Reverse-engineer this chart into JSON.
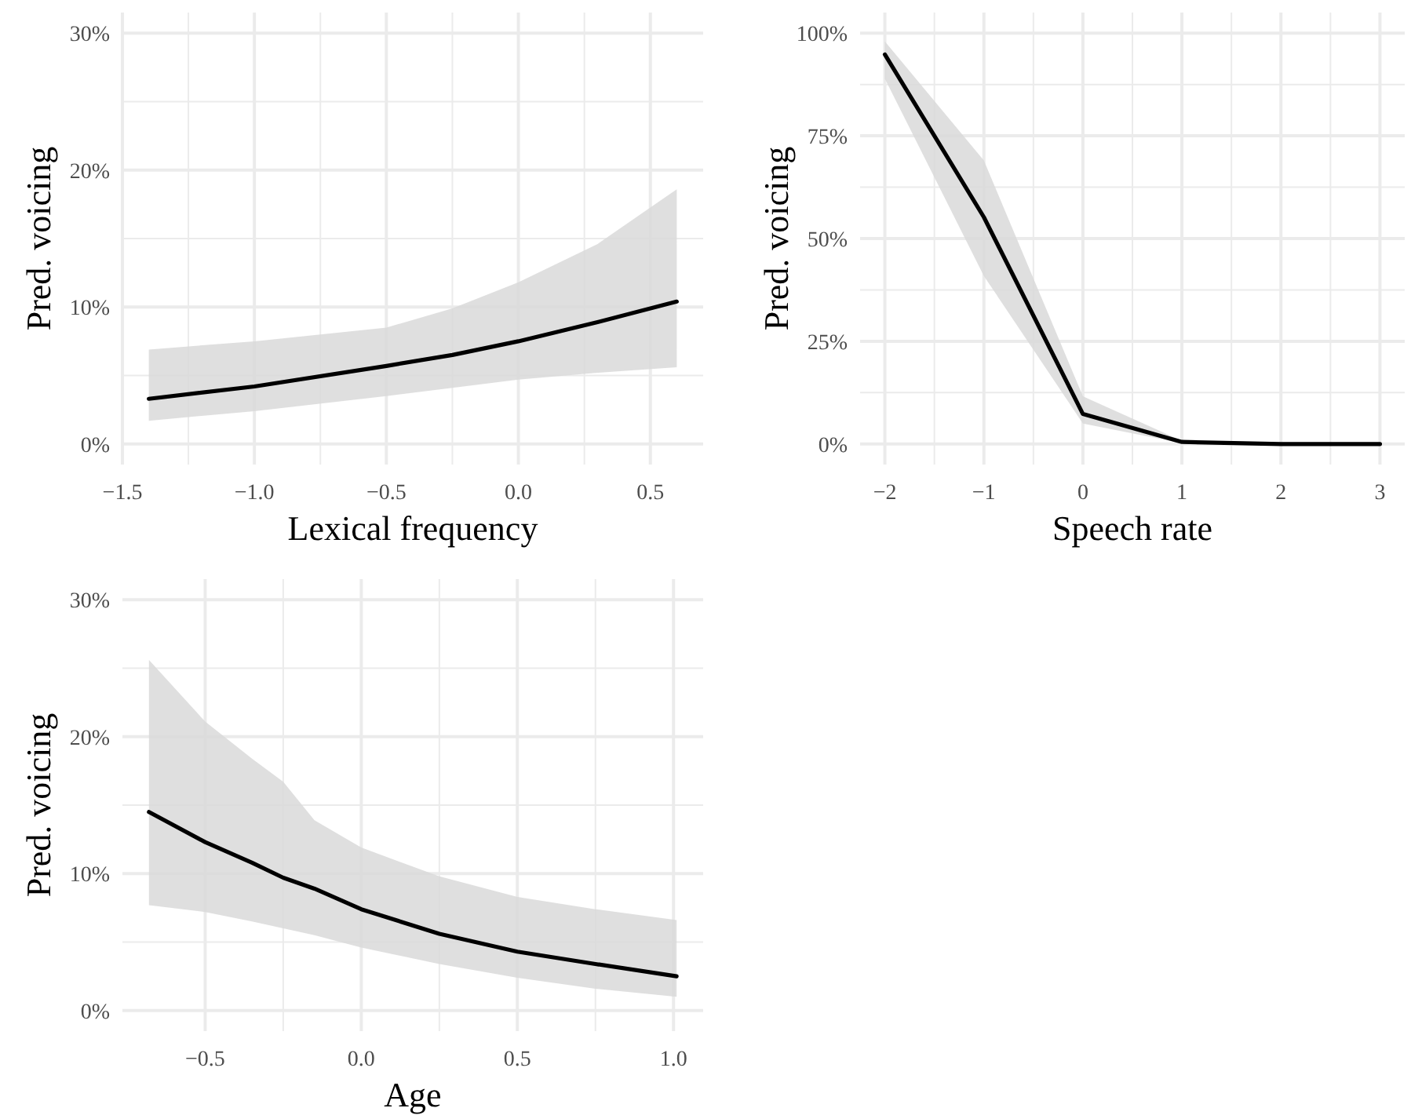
{
  "chart_data": [
    {
      "type": "line",
      "xlabel": "Lexical frequency",
      "ylabel": "Pred. voicing",
      "grid": true,
      "xlim": [
        -1.5,
        0.7
      ],
      "ylim": [
        -1.5,
        31.5
      ],
      "xticks": [
        -1.5,
        {
          "value": -1.25,
          "label": null
        },
        {
          "value": -1,
          "label": "−1.0"
        },
        {
          "value": -0.75,
          "label": null
        },
        -0.5,
        {
          "value": -0.25,
          "label": null
        },
        {
          "value": 0,
          "label": "0.0"
        },
        {
          "value": 0.25,
          "label": null
        },
        0.5
      ],
      "yticks": [
        {
          "value": 0,
          "label": "0%"
        },
        {
          "value": 5,
          "label": null
        },
        {
          "value": 10,
          "label": "10%"
        },
        {
          "value": 15,
          "label": null
        },
        {
          "value": 20,
          "label": "20%"
        },
        {
          "value": 25,
          "label": null
        },
        {
          "value": 30,
          "label": "30%"
        }
      ],
      "series": [
        {
          "color": "#000000",
          "x": [
            -1.4,
            -1.0,
            -0.5,
            -0.25,
            0,
            0.3,
            0.6
          ],
          "values": [
            3.3,
            4.2,
            5.7,
            6.5,
            7.5,
            8.9,
            10.4
          ],
          "lower": [
            1.7,
            2.4,
            3.5,
            4.1,
            4.7,
            5.2,
            5.6
          ],
          "upper": [
            6.9,
            7.5,
            8.5,
            9.9,
            11.8,
            14.6,
            18.6
          ]
        }
      ]
    },
    {
      "type": "line",
      "xlabel": "Speech rate",
      "ylabel": "Pred. voicing",
      "grid": true,
      "xlim": [
        -2.25,
        3.25
      ],
      "ylim": [
        -5,
        105
      ],
      "xticks": [
        -2,
        {
          "value": -1.5,
          "label": null
        },
        -1,
        {
          "value": -0.5,
          "label": null
        },
        0,
        {
          "value": 0.5,
          "label": null
        },
        1,
        {
          "value": 1.5,
          "label": null
        },
        2,
        {
          "value": 2.5,
          "label": null
        },
        3
      ],
      "yticks": [
        {
          "value": 0,
          "label": "0%"
        },
        {
          "value": 12.5,
          "label": null
        },
        {
          "value": 25,
          "label": "25%"
        },
        {
          "value": 37.5,
          "label": null
        },
        {
          "value": 50,
          "label": "50%"
        },
        {
          "value": 62.5,
          "label": null
        },
        {
          "value": 75,
          "label": "75%"
        },
        {
          "value": 87.5,
          "label": null
        },
        {
          "value": 100,
          "label": "100%"
        }
      ],
      "series": [
        {
          "color": "#000000",
          "x": [
            -2,
            -1,
            0,
            1,
            2,
            3
          ],
          "values": [
            94.8,
            55.2,
            7.3,
            0.5,
            0,
            0
          ],
          "lower": [
            88.9,
            40.9,
            5,
            0.2,
            0,
            0
          ],
          "upper": [
            98,
            69,
            11.6,
            0.8,
            0.1,
            0
          ]
        }
      ]
    },
    {
      "type": "line",
      "xlabel": "Age",
      "ylabel": "Pred. voicing",
      "grid": true,
      "xlim": [
        -0.765,
        1.095
      ],
      "ylim": [
        -1.5,
        31.5
      ],
      "xticks": [
        -0.5,
        {
          "value": -0.25,
          "label": null
        },
        {
          "value": 0,
          "label": "0.0"
        },
        {
          "value": 0.25,
          "label": null
        },
        0.5,
        {
          "value": 0.75,
          "label": null
        },
        {
          "value": 1,
          "label": "1.0"
        }
      ],
      "yticks": [
        {
          "value": 0,
          "label": "0%"
        },
        {
          "value": 5,
          "label": null
        },
        {
          "value": 10,
          "label": "10%"
        },
        {
          "value": 15,
          "label": null
        },
        {
          "value": 20,
          "label": "20%"
        },
        {
          "value": 25,
          "label": null
        },
        {
          "value": 30,
          "label": "30%"
        }
      ],
      "series": [
        {
          "color": "#000000",
          "x": [
            -0.68,
            -0.5,
            -0.35,
            -0.25,
            -0.15,
            0,
            0.25,
            0.5,
            0.75,
            1.01
          ],
          "values": [
            14.5,
            12.3,
            10.8,
            9.7,
            8.9,
            7.4,
            5.6,
            4.3,
            3.4,
            2.5
          ],
          "lower": [
            7.7,
            7.2,
            6.5,
            6.0,
            5.5,
            4.6,
            3.4,
            2.4,
            1.6,
            1.0
          ],
          "upper": [
            25.6,
            21.1,
            18.4,
            16.7,
            13.9,
            11.9,
            9.8,
            8.3,
            7.4,
            6.6
          ]
        }
      ]
    }
  ]
}
